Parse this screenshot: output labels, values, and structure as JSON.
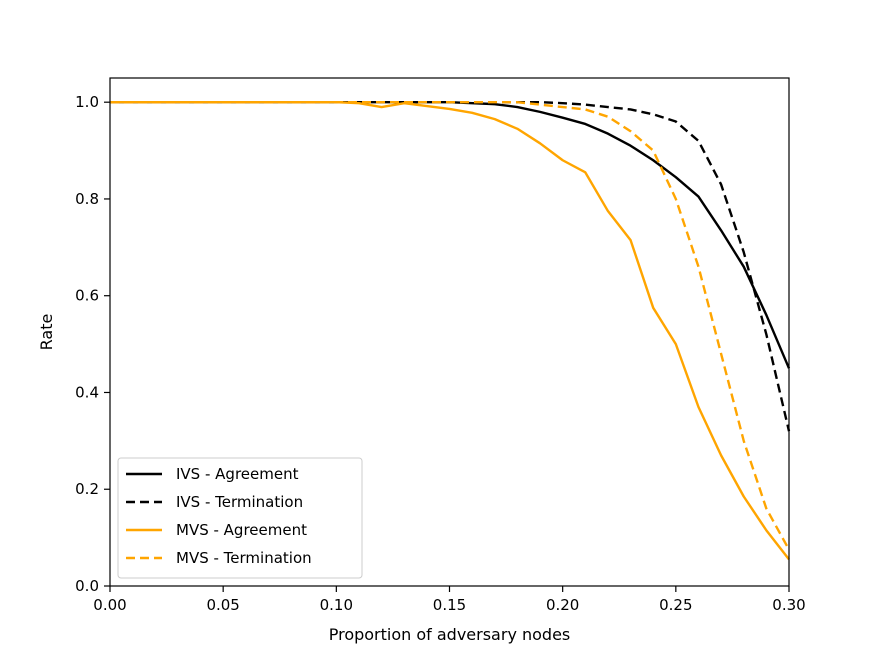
{
  "chart_data": {
    "type": "line",
    "title": "",
    "xlabel": "Proportion of adversary nodes",
    "ylabel": "Rate",
    "xlim": [
      0.0,
      0.3
    ],
    "ylim": [
      0.0,
      1.05
    ],
    "xticks": [
      0.0,
      0.05,
      0.1,
      0.15,
      0.2,
      0.25,
      0.3
    ],
    "xtick_labels": [
      "0.00",
      "0.05",
      "0.10",
      "0.15",
      "0.20",
      "0.25",
      "0.30"
    ],
    "yticks": [
      0.0,
      0.2,
      0.4,
      0.6,
      0.8,
      1.0
    ],
    "ytick_labels": [
      "0.0",
      "0.2",
      "0.4",
      "0.6",
      "0.8",
      "1.0"
    ],
    "grid": false,
    "legend_position": "lower-left",
    "x": [
      0.0,
      0.01,
      0.02,
      0.03,
      0.04,
      0.05,
      0.06,
      0.07,
      0.08,
      0.09,
      0.1,
      0.11,
      0.12,
      0.13,
      0.14,
      0.15,
      0.16,
      0.17,
      0.18,
      0.19,
      0.2,
      0.21,
      0.22,
      0.23,
      0.24,
      0.25,
      0.26,
      0.27,
      0.28,
      0.29,
      0.3
    ],
    "series": [
      {
        "name": "IVS - Agreement",
        "color": "#000000",
        "dash": "solid",
        "values": [
          1.0,
          1.0,
          1.0,
          1.0,
          1.0,
          1.0,
          1.0,
          1.0,
          1.0,
          1.0,
          1.0,
          1.0,
          1.0,
          1.0,
          1.0,
          1.0,
          0.998,
          0.996,
          0.99,
          0.98,
          0.968,
          0.955,
          0.935,
          0.91,
          0.88,
          0.845,
          0.805,
          0.735,
          0.66,
          0.56,
          0.45
        ]
      },
      {
        "name": "IVS - Termination",
        "color": "#000000",
        "dash": "dashed",
        "values": [
          1.0,
          1.0,
          1.0,
          1.0,
          1.0,
          1.0,
          1.0,
          1.0,
          1.0,
          1.0,
          1.0,
          1.0,
          1.0,
          1.0,
          1.0,
          1.0,
          1.0,
          1.0,
          1.0,
          1.0,
          0.998,
          0.995,
          0.99,
          0.985,
          0.975,
          0.96,
          0.92,
          0.83,
          0.69,
          0.52,
          0.32
        ]
      },
      {
        "name": "MVS - Agreement",
        "color": "#ffa500",
        "dash": "solid",
        "values": [
          1.0,
          1.0,
          1.0,
          1.0,
          1.0,
          1.0,
          1.0,
          1.0,
          1.0,
          1.0,
          1.0,
          0.998,
          0.99,
          0.998,
          0.992,
          0.986,
          0.978,
          0.965,
          0.945,
          0.915,
          0.88,
          0.855,
          0.775,
          0.715,
          0.575,
          0.5,
          0.37,
          0.27,
          0.185,
          0.115,
          0.055
        ]
      },
      {
        "name": "MVS - Termination",
        "color": "#ffa500",
        "dash": "dashed",
        "values": [
          1.0,
          1.0,
          1.0,
          1.0,
          1.0,
          1.0,
          1.0,
          1.0,
          1.0,
          1.0,
          1.0,
          1.0,
          1.0,
          1.0,
          1.0,
          1.0,
          1.0,
          1.0,
          1.0,
          0.995,
          0.99,
          0.985,
          0.97,
          0.94,
          0.9,
          0.8,
          0.66,
          0.48,
          0.3,
          0.16,
          0.075
        ]
      }
    ]
  }
}
